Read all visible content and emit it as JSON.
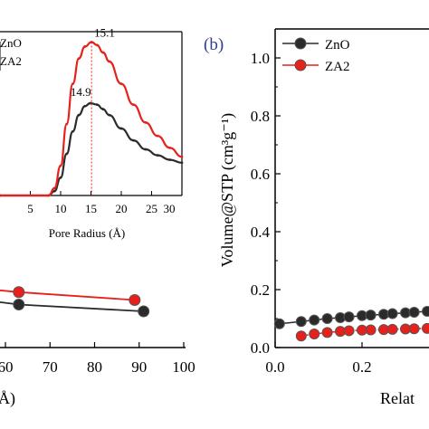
{
  "panel_labels": {
    "b": "(b)"
  },
  "colors": {
    "zno": "#2b2b2b",
    "za2": "#e8201c",
    "marker_line": "#555555",
    "panel_label": "#2e3f8f"
  },
  "chart_data": [
    {
      "id": "inset-pore-size",
      "type": "line",
      "xlabel": "Pore Radius (Å)",
      "xlim": [
        0,
        30
      ],
      "x_ticks": [
        "5",
        "10",
        "15",
        "20",
        "25",
        "30"
      ],
      "legend": {
        "placement": "top-left",
        "entries": [
          "ZnO",
          "ZA2"
        ]
      },
      "series": [
        {
          "name": "ZnO",
          "x": [
            0,
            8,
            9,
            10,
            11,
            12,
            13,
            14,
            14.9,
            16,
            17,
            18,
            20,
            22,
            24,
            26,
            28,
            30
          ],
          "y": [
            0,
            0,
            0.03,
            0.12,
            0.28,
            0.43,
            0.54,
            0.6,
            0.62,
            0.61,
            0.58,
            0.54,
            0.45,
            0.37,
            0.31,
            0.27,
            0.24,
            0.22
          ]
        },
        {
          "name": "ZA2",
          "x": [
            0,
            8,
            9,
            10,
            11,
            12,
            13,
            14,
            15.1,
            16,
            17,
            18,
            20,
            22,
            24,
            26,
            28,
            30
          ],
          "y": [
            0,
            0,
            0.05,
            0.2,
            0.48,
            0.75,
            0.92,
            1.0,
            1.03,
            1.01,
            0.96,
            0.9,
            0.75,
            0.61,
            0.49,
            0.4,
            0.32,
            0.26
          ]
        }
      ],
      "annotations": [
        {
          "text": "14.9",
          "x": 14.9,
          "series": "ZnO"
        },
        {
          "text": "15.1",
          "x": 15.1,
          "series": "ZA2"
        }
      ]
    },
    {
      "id": "panel-a-bottom",
      "type": "line",
      "xlim": [
        55,
        100
      ],
      "x_ticks": [
        "60",
        "70",
        "80",
        "90",
        "100"
      ],
      "xlabel": "Å)",
      "series": [
        {
          "name": "ZnO",
          "x": [
            55,
            63,
            91
          ],
          "y": [
            0.92,
            0.88,
            0.82
          ]
        },
        {
          "name": "ZA2",
          "x": [
            55,
            63,
            89
          ],
          "y": [
            1.02,
            0.99,
            0.92
          ]
        }
      ]
    },
    {
      "id": "panel-b",
      "type": "line",
      "ylabel": "Volume@STP (cm³g⁻¹)",
      "xlabel": "Relat",
      "xlim": [
        0.0,
        0.56
      ],
      "ylim": [
        0.0,
        1.08
      ],
      "x_ticks": [
        "0.0",
        "0.2"
      ],
      "y_ticks": [
        "0.0",
        "0.2",
        "0.4",
        "0.6",
        "0.8",
        "1.0"
      ],
      "legend": {
        "placement": "top-left",
        "entries": [
          "ZnO",
          "ZA2"
        ]
      },
      "series": [
        {
          "name": "ZnO",
          "x": [
            0.01,
            0.06,
            0.09,
            0.12,
            0.15,
            0.17,
            0.2,
            0.22,
            0.25,
            0.27,
            0.3,
            0.32,
            0.35,
            0.37,
            0.4,
            0.42,
            0.45,
            0.47,
            0.5,
            0.52,
            0.55
          ],
          "y": [
            0.082,
            0.09,
            0.095,
            0.1,
            0.103,
            0.106,
            0.11,
            0.112,
            0.115,
            0.117,
            0.12,
            0.122,
            0.125,
            0.127,
            0.13,
            0.133,
            0.136,
            0.138,
            0.141,
            0.143,
            0.146
          ]
        },
        {
          "name": "ZA2",
          "x": [
            0.06,
            0.09,
            0.12,
            0.15,
            0.17,
            0.2,
            0.22,
            0.25,
            0.27,
            0.3,
            0.32,
            0.35,
            0.37,
            0.4,
            0.42,
            0.45,
            0.47,
            0.5,
            0.52,
            0.55
          ],
          "y": [
            0.04,
            0.047,
            0.052,
            0.056,
            0.058,
            0.06,
            0.061,
            0.062,
            0.063,
            0.064,
            0.065,
            0.066,
            0.067,
            0.068,
            0.069,
            0.07,
            0.071,
            0.072,
            0.073,
            0.074
          ]
        }
      ]
    }
  ]
}
